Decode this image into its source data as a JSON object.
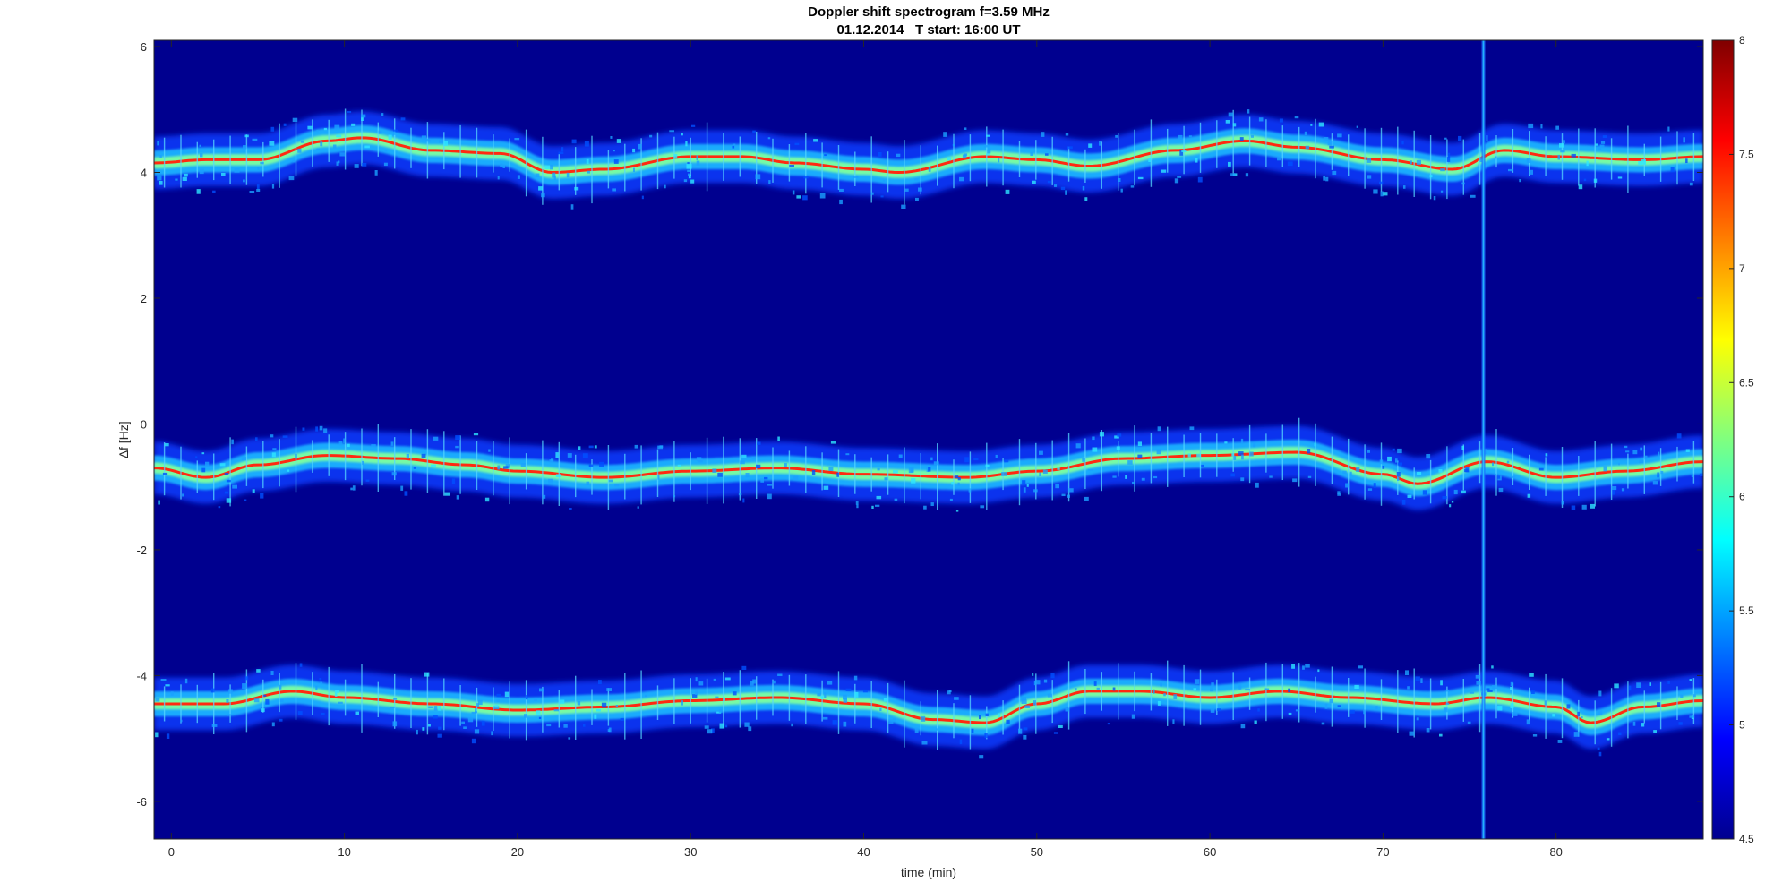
{
  "chart_data": {
    "type": "heatmap",
    "title": "Doppler shift spectrogram f=3.59 MHz",
    "subtitle": "01.12.2014   T start: 16:00 UT",
    "xlabel": "time (min)",
    "ylabel": "∆f [Hz]",
    "xlim": [
      -1,
      88.5
    ],
    "ylim": [
      -6.6,
      6.1
    ],
    "x_ticks": [
      "0",
      "10",
      "20",
      "30",
      "40",
      "50",
      "60",
      "70",
      "80"
    ],
    "y_ticks": [
      "6",
      "4",
      "2",
      "0",
      "-2",
      "-4",
      "-6"
    ],
    "colorbar": {
      "min": 4.5,
      "max": 8,
      "ticks": [
        "8",
        "7.5",
        "7",
        "6.5",
        "6",
        "5.5",
        "5",
        "4.5"
      ],
      "colormap": "jet"
    },
    "background_color": "#00008f",
    "vertical_line_x": 75.8,
    "series": [
      {
        "x": [
          -1,
          2,
          5,
          9,
          11,
          15,
          19,
          22,
          25,
          30,
          33,
          36,
          40,
          42,
          47,
          50,
          53,
          58,
          62,
          65,
          70,
          74,
          77,
          80,
          85,
          88.5
        ],
        "y": [
          4.15,
          4.2,
          4.2,
          4.5,
          4.55,
          4.35,
          4.3,
          4.0,
          4.05,
          4.25,
          4.25,
          4.15,
          4.05,
          4.0,
          4.25,
          4.2,
          4.1,
          4.35,
          4.5,
          4.4,
          4.2,
          4.05,
          4.35,
          4.25,
          4.2,
          4.25
        ]
      },
      {
        "x": [
          -1,
          2,
          5,
          9,
          13,
          17,
          20,
          25,
          30,
          35,
          40,
          46,
          50,
          55,
          60,
          65,
          70,
          72,
          76,
          80,
          84,
          88.5
        ],
        "y": [
          -0.7,
          -0.85,
          -0.65,
          -0.5,
          -0.55,
          -0.65,
          -0.75,
          -0.85,
          -0.75,
          -0.7,
          -0.8,
          -0.85,
          -0.75,
          -0.55,
          -0.5,
          -0.45,
          -0.8,
          -0.95,
          -0.6,
          -0.85,
          -0.75,
          -0.6
        ]
      },
      {
        "x": [
          -1,
          3,
          7,
          10,
          15,
          20,
          25,
          30,
          35,
          40,
          44,
          47,
          50,
          53,
          56,
          60,
          64,
          68,
          73,
          76,
          80,
          82,
          85,
          88.5
        ],
        "y": [
          -4.45,
          -4.45,
          -4.25,
          -4.35,
          -4.45,
          -4.55,
          -4.5,
          -4.4,
          -4.35,
          -4.45,
          -4.7,
          -4.75,
          -4.45,
          -4.25,
          -4.25,
          -4.35,
          -4.25,
          -4.35,
          -4.45,
          -4.35,
          -4.5,
          -4.75,
          -4.5,
          -4.4
        ]
      }
    ]
  }
}
